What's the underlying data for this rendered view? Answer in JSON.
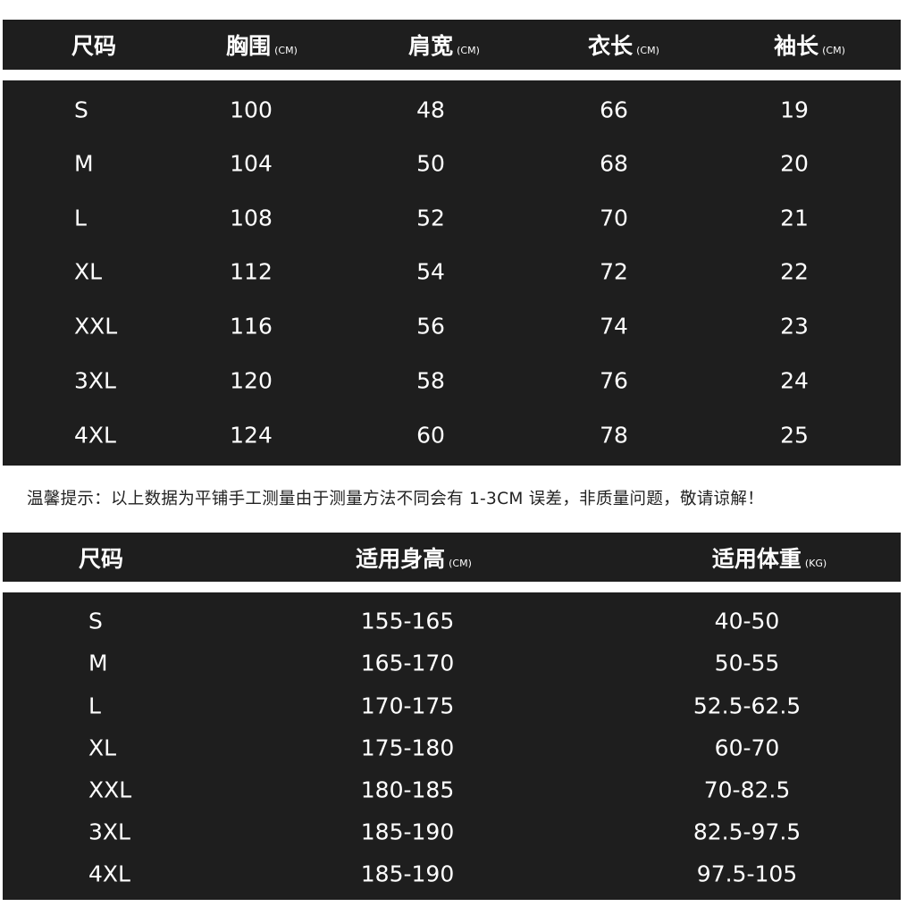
{
  "measurement_table": {
    "headers": [
      {
        "label": "尺码",
        "unit": ""
      },
      {
        "label": "胸围",
        "unit": "(CM)"
      },
      {
        "label": "肩宽",
        "unit": "(CM)"
      },
      {
        "label": "衣长",
        "unit": "(CM)"
      },
      {
        "label": "袖长",
        "unit": "(CM)"
      }
    ],
    "rows": [
      [
        "S",
        "100",
        "48",
        "66",
        "19"
      ],
      [
        "M",
        "104",
        "50",
        "68",
        "20"
      ],
      [
        "L",
        "108",
        "52",
        "70",
        "21"
      ],
      [
        "XL",
        "112",
        "54",
        "72",
        "22"
      ],
      [
        "XXL",
        "116",
        "56",
        "74",
        "23"
      ],
      [
        "3XL",
        "120",
        "58",
        "76",
        "24"
      ],
      [
        "4XL",
        "124",
        "60",
        "78",
        "25"
      ]
    ]
  },
  "note": "温馨提示：以上数据为平铺手工测量由于测量方法不同会有 1-3CM 误差，非质量问题，敬请谅解！",
  "fit_table": {
    "headers": [
      {
        "label": "尺码",
        "unit": ""
      },
      {
        "label": "适用身高",
        "unit": "(CM)"
      },
      {
        "label": "适用体重",
        "unit": "(KG)"
      }
    ],
    "rows": [
      [
        "S",
        "155-165",
        "40-50"
      ],
      [
        "M",
        "165-170",
        "50-55"
      ],
      [
        "L",
        "170-175",
        "52.5-62.5"
      ],
      [
        "XL",
        "175-180",
        "60-70"
      ],
      [
        "XXL",
        "180-185",
        "70-82.5"
      ],
      [
        "3XL",
        "185-190",
        "82.5-97.5"
      ],
      [
        "4XL",
        "185-190",
        "97.5-105"
      ]
    ]
  },
  "colors": {
    "panel": "#1e1e1e",
    "text": "#ffffff",
    "background": "#ffffff"
  }
}
